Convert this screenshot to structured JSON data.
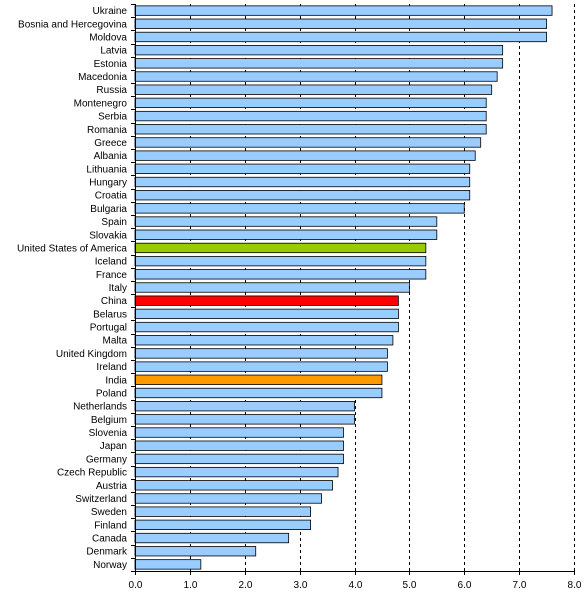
{
  "chart_data": {
    "type": "bar",
    "orientation": "horizontal",
    "title": "",
    "xlabel": "",
    "ylabel": "",
    "xlim": [
      0,
      8
    ],
    "xticks": [
      "0.0",
      "1.0",
      "2.0",
      "3.0",
      "4.0",
      "5.0",
      "6.0",
      "7.0",
      "8.0"
    ],
    "grid": "vertical dashed",
    "legend": "none",
    "colors": {
      "default": "#99ccff",
      "highlight_green": "#99cc00",
      "highlight_red": "#ff0000",
      "highlight_orange": "#ff9900",
      "border": "#000000"
    },
    "categories": [
      "Ukraine",
      "Bosnia and Hercegovina",
      "Moldova",
      "Latvia",
      "Estonia",
      "Macedonia",
      "Russia",
      "Montenegro",
      "Serbia",
      "Romania",
      "Greece",
      "Albania",
      "Lithuania",
      "Hungary",
      "Croatia",
      "Bulgaria",
      "Spain",
      "Slovakia",
      "United States of America",
      "Iceland",
      "France",
      "Italy",
      "China",
      "Belarus",
      "Portugal",
      "Malta",
      "United Kingdom",
      "Ireland",
      "India",
      "Poland",
      "Netherlands",
      "Belgium",
      "Slovenia",
      "Japan",
      "Germany",
      "Czech Republic",
      "Austria",
      "Switzerland",
      "Sweden",
      "Finland",
      "Canada",
      "Denmark",
      "Norway"
    ],
    "values": [
      7.6,
      7.5,
      7.5,
      6.7,
      6.7,
      6.6,
      6.5,
      6.4,
      6.4,
      6.4,
      6.3,
      6.2,
      6.1,
      6.1,
      6.1,
      6.0,
      5.5,
      5.5,
      5.3,
      5.3,
      5.3,
      5.0,
      4.8,
      4.8,
      4.8,
      4.7,
      4.6,
      4.6,
      4.5,
      4.5,
      4.0,
      4.0,
      3.8,
      3.8,
      3.8,
      3.7,
      3.6,
      3.4,
      3.2,
      3.2,
      2.8,
      2.2,
      1.2
    ],
    "highlights": {
      "United States of America": "highlight_green",
      "China": "highlight_red",
      "India": "highlight_orange"
    }
  }
}
